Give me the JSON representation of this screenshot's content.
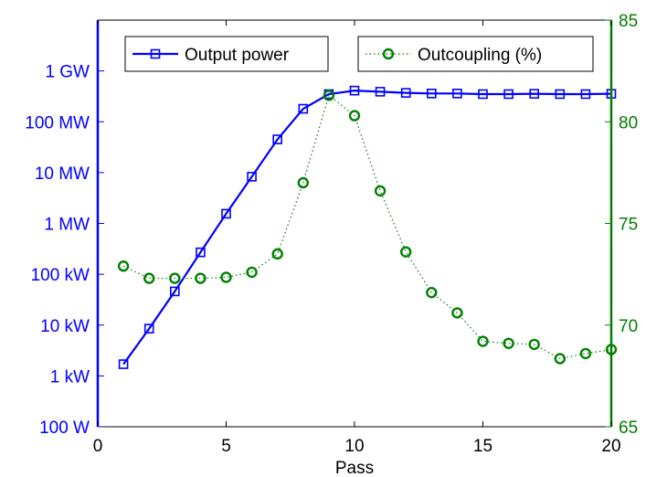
{
  "chart_data": {
    "type": "line",
    "x": [
      1,
      2,
      3,
      4,
      5,
      6,
      7,
      8,
      9,
      10,
      11,
      12,
      13,
      14,
      15,
      16,
      17,
      18,
      19,
      20
    ],
    "xlabel": "Pass",
    "xlim": [
      0,
      20
    ],
    "x_ticks": [
      0,
      5,
      10,
      15,
      20
    ],
    "x_tick_labels": [
      "0",
      "5",
      "10",
      "15",
      "20"
    ],
    "left_axis": {
      "scale": "log",
      "unit": "W",
      "ylim": [
        100,
        10000000000.0
      ],
      "ticks": [
        100,
        1000,
        10000,
        100000,
        1000000,
        10000000,
        100000000,
        1000000000
      ],
      "tick_labels": [
        "100 W",
        "1 kW",
        "10 kW",
        "100 kW",
        "1 MW",
        "10 MW",
        "100 MW",
        "1 GW"
      ],
      "color": "#0000ff"
    },
    "right_axis": {
      "scale": "linear",
      "ylim": [
        65,
        85
      ],
      "ticks": [
        65,
        70,
        75,
        80,
        85
      ],
      "tick_labels": [
        "65",
        "70",
        "75",
        "80",
        "85"
      ],
      "color": "#008000"
    },
    "series": [
      {
        "name": "Output power",
        "axis": "left",
        "color": "#0000ff",
        "marker": "square",
        "line_style": "solid",
        "values": [
          1700,
          8500,
          46000,
          270000,
          1550000,
          8300000,
          45000000,
          180000000,
          350000000,
          410000000,
          390000000,
          370000000,
          360000000,
          360000000,
          350000000,
          350000000,
          355000000,
          350000000,
          350000000,
          355000000
        ]
      },
      {
        "name": "Outcoupling (%)",
        "axis": "right",
        "color": "#008000",
        "marker": "circle",
        "line_style": "dotted",
        "values": [
          72.9,
          72.3,
          72.3,
          72.3,
          72.35,
          72.6,
          73.5,
          77.0,
          81.3,
          80.3,
          76.6,
          73.6,
          71.6,
          70.6,
          69.2,
          69.1,
          69.05,
          68.35,
          68.6,
          68.8
        ]
      }
    ],
    "grid": false,
    "legend": {
      "placement": "top",
      "orientation": "horizontal"
    }
  }
}
